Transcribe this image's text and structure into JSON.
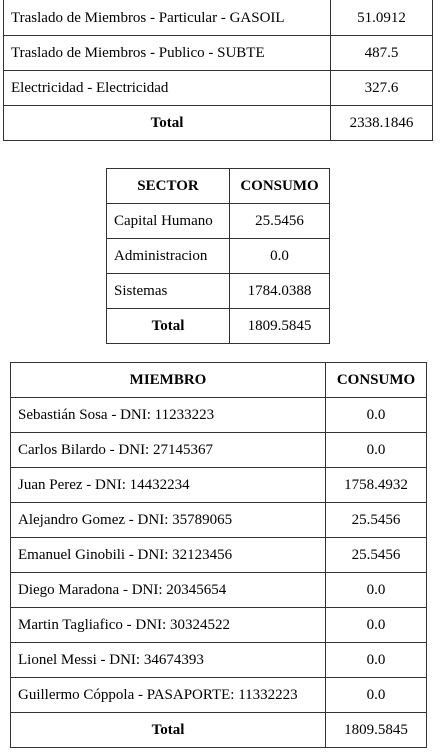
{
  "categorias": {
    "rows": [
      {
        "label": "Traslado de Miembros - Particular - GASOIL",
        "value": "51.0912"
      },
      {
        "label": "Traslado de Miembros - Publico - SUBTE",
        "value": "487.5"
      },
      {
        "label": "Electricidad - Electricidad",
        "value": "327.6"
      }
    ],
    "total_label": "Total",
    "total_value": "2338.1846"
  },
  "sector": {
    "headers": [
      "SECTOR",
      "CONSUMO"
    ],
    "rows": [
      {
        "label": "Capital Humano",
        "value": "25.5456"
      },
      {
        "label": "Administracion",
        "value": "0.0"
      },
      {
        "label": "Sistemas",
        "value": "1784.0388"
      }
    ],
    "total_label": "Total",
    "total_value": "1809.5845"
  },
  "miembros": {
    "headers": [
      "MIEMBRO",
      "CONSUMO"
    ],
    "rows": [
      {
        "label": "Sebastián Sosa - DNI: 11233223",
        "value": "0.0"
      },
      {
        "label": "Carlos Bilardo - DNI: 27145367",
        "value": "0.0"
      },
      {
        "label": "Juan Perez - DNI: 14432234",
        "value": "1758.4932"
      },
      {
        "label": "Alejandro Gomez - DNI: 35789065",
        "value": "25.5456"
      },
      {
        "label": "Emanuel Ginobili - DNI: 32123456",
        "value": "25.5456"
      },
      {
        "label": "Diego Maradona - DNI: 20345654",
        "value": "0.0"
      },
      {
        "label": "Martin Tagliafico - DNI: 30324522",
        "value": "0.0"
      },
      {
        "label": "Lionel Messi - DNI: 34674393",
        "value": "0.0"
      },
      {
        "label": "Guillermo Cóppola - PASAPORTE: 11332223",
        "value": "0.0"
      }
    ],
    "total_label": "Total",
    "total_value": "1809.5845"
  }
}
